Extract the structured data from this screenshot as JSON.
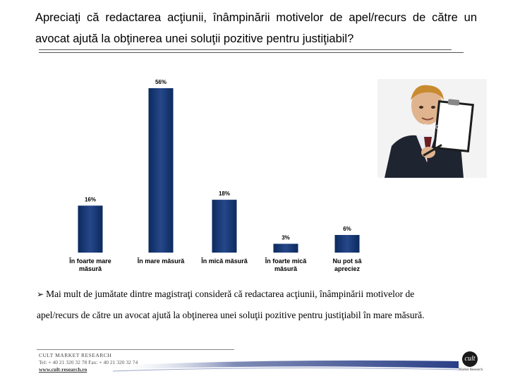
{
  "slide": {
    "question": "Apreciaţi că redactarea acţiunii, înâmpinării motivelor de apel/recurs de către un avocat ajută la obţinerea unei soluţii pozitive pentru justiţiabil?",
    "conclusion": "Mai mult de jumătate dintre magistraţi consideră că redactarea acţiunii, înâmpinării motivelor de apel/recurs de către un avocat ajută la obţinerea unei soluţii pozitive pentru justiţiabil în mare măsură.",
    "bullet_icon": "arrow-bullet-icon",
    "photo_watermark": "iStockphoto"
  },
  "footer": {
    "company": "CULT MARKET RESEARCH",
    "contact": "Tel: + 40 21 320 32 78  Fax: + 40 21 320 32 74",
    "website": "www.cult-research.ro",
    "logo_text": "cult",
    "logo_caption": "Market Research"
  },
  "colors": {
    "bar_top": "#0b2a5e",
    "bar_mid": "#26478a",
    "swoosh": "#2a3f86"
  },
  "chart_data": {
    "type": "bar",
    "categories": [
      [
        "În foarte mare",
        "măsură"
      ],
      [
        "În mare măsură"
      ],
      [
        "În mică măsură"
      ],
      [
        "În foarte mică",
        "măsură"
      ],
      [
        "Nu pot să",
        "apreciez"
      ]
    ],
    "values": [
      16,
      56,
      18,
      3,
      6
    ],
    "value_labels": [
      "16%",
      "56%",
      "18%",
      "3%",
      "6%"
    ],
    "ylim": [
      0,
      56
    ],
    "grid": false,
    "legend": false
  }
}
